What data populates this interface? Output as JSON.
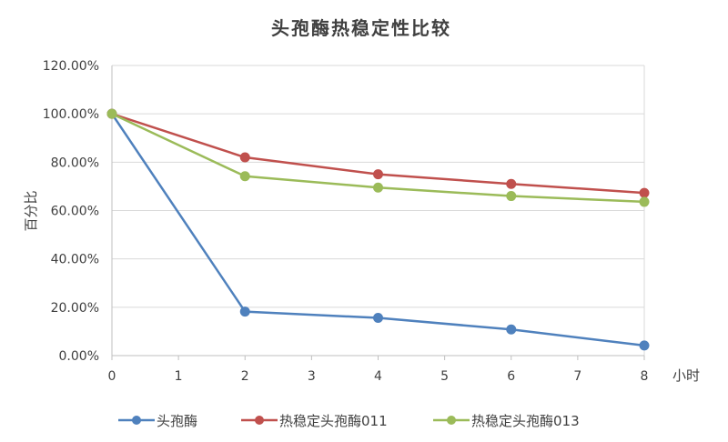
{
  "chart_data": {
    "type": "line",
    "title": "头孢酶热稳定性比较",
    "xlabel": "小时",
    "ylabel": "百分比",
    "x_ticks": [
      0,
      1,
      2,
      3,
      4,
      5,
      6,
      7,
      8
    ],
    "y_ticks": [
      "0.00%",
      "20.00%",
      "40.00%",
      "60.00%",
      "80.00%",
      "100.00%",
      "120.00%"
    ],
    "xlim": [
      0,
      8
    ],
    "ylim": [
      0,
      120
    ],
    "grid": "horizontal",
    "legend_position": "bottom",
    "x": [
      0,
      2,
      4,
      6,
      8
    ],
    "series": [
      {
        "name": "头孢酶",
        "color": "#4f81bd",
        "values": [
          100,
          18.2,
          15.6,
          10.8,
          4.2
        ]
      },
      {
        "name": "热稳定头孢酶011",
        "color": "#c0504d",
        "values": [
          100,
          82.0,
          75.0,
          71.0,
          67.3
        ]
      },
      {
        "name": "热稳定头孢酶013",
        "color": "#9bbb59",
        "values": [
          100,
          74.2,
          69.5,
          66.0,
          63.6
        ]
      }
    ]
  }
}
